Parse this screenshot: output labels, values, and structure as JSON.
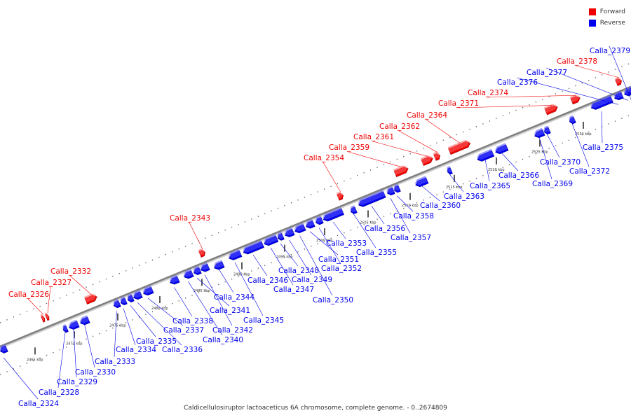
{
  "caption": "Caldicellulosiruptor lactoaceticus 6A chromosome, complete genome. - 0..2674809",
  "legend": [
    {
      "label": "Forward",
      "color": "#ee0000"
    },
    {
      "label": "Reverse",
      "color": "#0000ee"
    }
  ],
  "colors": {
    "forward": "#ee0000",
    "reverse": "#0000ee",
    "backbone": "#808080"
  },
  "ticks": [
    "2465 kbp",
    "2470 kbp",
    "2475 kbp",
    "2480 kbp",
    "2485 kbp",
    "2490 kbp",
    "2495 kbp",
    "2500 kbp",
    "2505 kbp",
    "2510 kbp",
    "2515 kbp",
    "2520 kbp",
    "2525 kbp",
    "2530 kbp"
  ],
  "genes": [
    {
      "name": "Calla_2324",
      "strand": "reverse"
    },
    {
      "name": "Calla_2326",
      "strand": "forward"
    },
    {
      "name": "Calla_2327",
      "strand": "forward"
    },
    {
      "name": "Calla_2328",
      "strand": "reverse"
    },
    {
      "name": "Calla_2329",
      "strand": "reverse"
    },
    {
      "name": "Calla_2330",
      "strand": "reverse"
    },
    {
      "name": "Calla_2332",
      "strand": "forward"
    },
    {
      "name": "Calla_2333",
      "strand": "reverse"
    },
    {
      "name": "Calla_2334",
      "strand": "reverse"
    },
    {
      "name": "Calla_2335",
      "strand": "reverse"
    },
    {
      "name": "Calla_2336",
      "strand": "reverse"
    },
    {
      "name": "Calla_2337",
      "strand": "reverse"
    },
    {
      "name": "Calla_2338",
      "strand": "reverse"
    },
    {
      "name": "Calla_2340",
      "strand": "reverse"
    },
    {
      "name": "Calla_2341",
      "strand": "reverse"
    },
    {
      "name": "Calla_2342",
      "strand": "reverse"
    },
    {
      "name": "Calla_2343",
      "strand": "forward"
    },
    {
      "name": "Calla_2344",
      "strand": "reverse"
    },
    {
      "name": "Calla_2345",
      "strand": "reverse"
    },
    {
      "name": "Calla_2346",
      "strand": "reverse"
    },
    {
      "name": "Calla_2347",
      "strand": "reverse"
    },
    {
      "name": "Calla_2348",
      "strand": "reverse"
    },
    {
      "name": "Calla_2349",
      "strand": "reverse"
    },
    {
      "name": "Calla_2350",
      "strand": "reverse"
    },
    {
      "name": "Calla_2351",
      "strand": "reverse"
    },
    {
      "name": "Calla_2352",
      "strand": "reverse"
    },
    {
      "name": "Calla_2353",
      "strand": "reverse"
    },
    {
      "name": "Calla_2354",
      "strand": "forward"
    },
    {
      "name": "Calla_2355",
      "strand": "reverse"
    },
    {
      "name": "Calla_2356",
      "strand": "reverse"
    },
    {
      "name": "Calla_2357",
      "strand": "reverse"
    },
    {
      "name": "Calla_2358",
      "strand": "reverse"
    },
    {
      "name": "Calla_2359",
      "strand": "forward"
    },
    {
      "name": "Calla_2360",
      "strand": "reverse"
    },
    {
      "name": "Calla_2361",
      "strand": "forward"
    },
    {
      "name": "Calla_2362",
      "strand": "forward"
    },
    {
      "name": "Calla_2363",
      "strand": "reverse"
    },
    {
      "name": "Calla_2364",
      "strand": "forward"
    },
    {
      "name": "Calla_2365",
      "strand": "reverse"
    },
    {
      "name": "Calla_2366",
      "strand": "reverse"
    },
    {
      "name": "Calla_2369",
      "strand": "reverse"
    },
    {
      "name": "Calla_2370",
      "strand": "reverse"
    },
    {
      "name": "Calla_2371",
      "strand": "forward"
    },
    {
      "name": "Calla_2372",
      "strand": "reverse"
    },
    {
      "name": "Calla_2374",
      "strand": "forward"
    },
    {
      "name": "Calla_2375",
      "strand": "reverse"
    },
    {
      "name": "Calla_2376",
      "strand": "reverse"
    },
    {
      "name": "Calla_2377",
      "strand": "reverse"
    },
    {
      "name": "Calla_2378",
      "strand": "forward"
    },
    {
      "name": "Calla_2379",
      "strand": "reverse"
    }
  ]
}
